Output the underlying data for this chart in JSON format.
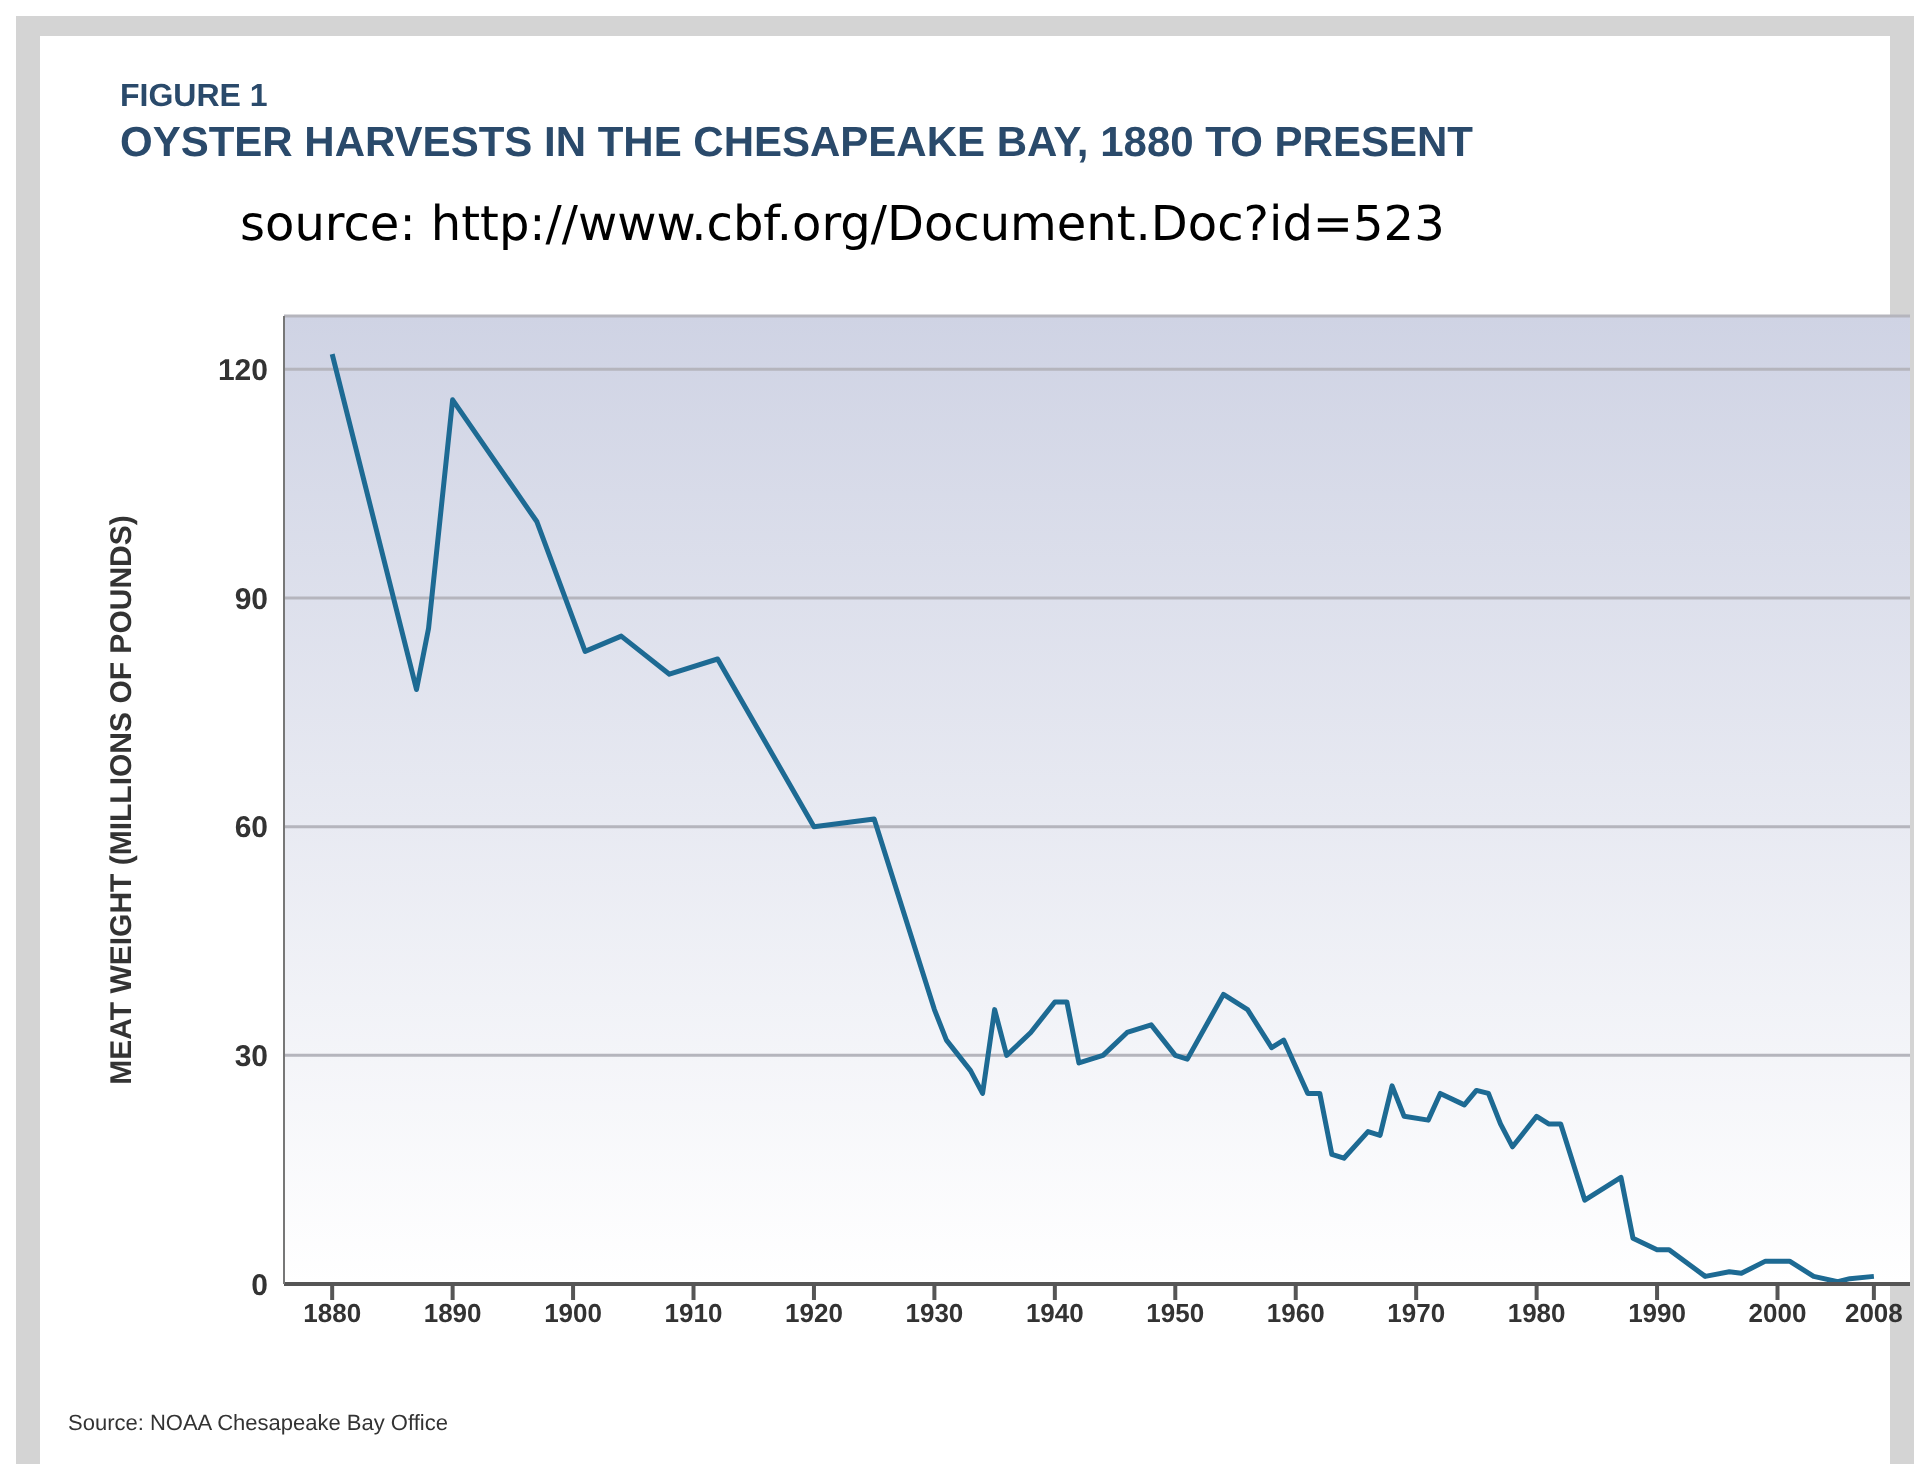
{
  "chart_data": {
    "type": "line",
    "subtitle": "FIGURE 1",
    "title": "OYSTER HARVESTS IN THE CHESAPEAKE BAY, 1880 TO PRESENT",
    "annotations": [
      "source: http://www.cbf.org/Document.Doc?id=523",
      "Source: NOAA Chesapeake Bay Office"
    ],
    "ylabel": "MEAT WEIGHT (MILLIONS OF POUNDS)",
    "x": [
      1880,
      1887,
      1888,
      1890,
      1897,
      1901,
      1904,
      1908,
      1912,
      1920,
      1925,
      1929,
      1930,
      1931,
      1933,
      1934,
      1935,
      1936,
      1938,
      1940,
      1941,
      1942,
      1944,
      1946,
      1948,
      1950,
      1951,
      1954,
      1956,
      1958,
      1959,
      1961,
      1962,
      1963,
      1964,
      1966,
      1967,
      1968,
      1969,
      1971,
      1972,
      1974,
      1975,
      1976,
      1977,
      1978,
      1980,
      1981,
      1982,
      1984,
      1987,
      1988,
      1990,
      1991,
      1994,
      1996,
      1997,
      1999,
      2001,
      2003,
      2005,
      2006,
      2008
    ],
    "series": [
      {
        "color": "#1d6a93",
        "values": [
          122,
          78,
          86,
          116,
          100,
          83,
          85,
          80,
          82,
          60,
          61,
          41,
          36,
          32,
          28,
          25,
          36,
          30,
          33,
          37,
          37,
          29,
          30,
          33,
          34,
          30,
          29.5,
          38,
          36,
          31,
          32,
          25,
          25,
          17,
          16.5,
          20,
          19.5,
          26,
          22,
          21.5,
          25,
          23.5,
          25.4,
          25,
          21,
          18,
          22,
          21,
          21,
          11,
          14,
          6,
          4.5,
          4.5,
          1,
          1.6,
          1.4,
          3,
          3,
          1,
          0.3,
          0.7,
          1
        ]
      }
    ],
    "xlim": [
      1876,
      2011
    ],
    "xticks": [
      1880,
      1890,
      1900,
      1910,
      1920,
      1930,
      1940,
      1950,
      1960,
      1970,
      1980,
      1990,
      2000,
      2008
    ],
    "ylim": [
      0,
      127
    ],
    "yticks": [
      0,
      30,
      60,
      90,
      120
    ],
    "grid": "y",
    "legend": false,
    "marker": "none",
    "line_style": "solid"
  }
}
